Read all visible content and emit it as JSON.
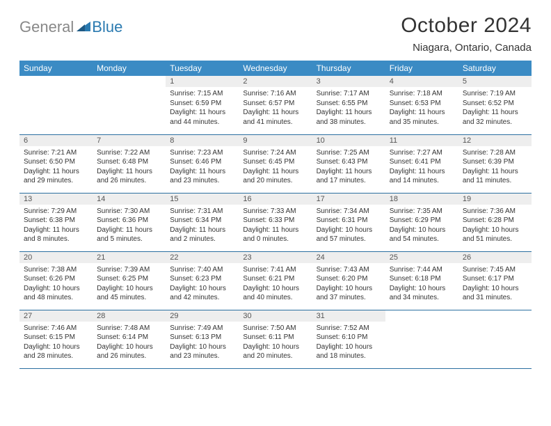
{
  "logo": {
    "text_gray": "General",
    "text_blue": "Blue"
  },
  "title": "October 2024",
  "location": "Niagara, Ontario, Canada",
  "colors": {
    "header_bg": "#3b8bc4",
    "header_text": "#ffffff",
    "daynum_bg": "#eeeeee",
    "row_border": "#2a6fa0",
    "body_text": "#333333",
    "logo_gray": "#888888",
    "logo_blue": "#2a7ab0",
    "page_bg": "#ffffff"
  },
  "fonts": {
    "title_size_pt": 30,
    "location_size_pt": 15,
    "dow_size_pt": 12,
    "daynum_size_pt": 11,
    "cell_size_pt": 10
  },
  "weekdays": [
    "Sunday",
    "Monday",
    "Tuesday",
    "Wednesday",
    "Thursday",
    "Friday",
    "Saturday"
  ],
  "weeks": [
    [
      {
        "day": "",
        "sunrise": "",
        "sunset": "",
        "daylight": ""
      },
      {
        "day": "",
        "sunrise": "",
        "sunset": "",
        "daylight": ""
      },
      {
        "day": "1",
        "sunrise": "Sunrise: 7:15 AM",
        "sunset": "Sunset: 6:59 PM",
        "daylight": "Daylight: 11 hours and 44 minutes."
      },
      {
        "day": "2",
        "sunrise": "Sunrise: 7:16 AM",
        "sunset": "Sunset: 6:57 PM",
        "daylight": "Daylight: 11 hours and 41 minutes."
      },
      {
        "day": "3",
        "sunrise": "Sunrise: 7:17 AM",
        "sunset": "Sunset: 6:55 PM",
        "daylight": "Daylight: 11 hours and 38 minutes."
      },
      {
        "day": "4",
        "sunrise": "Sunrise: 7:18 AM",
        "sunset": "Sunset: 6:53 PM",
        "daylight": "Daylight: 11 hours and 35 minutes."
      },
      {
        "day": "5",
        "sunrise": "Sunrise: 7:19 AM",
        "sunset": "Sunset: 6:52 PM",
        "daylight": "Daylight: 11 hours and 32 minutes."
      }
    ],
    [
      {
        "day": "6",
        "sunrise": "Sunrise: 7:21 AM",
        "sunset": "Sunset: 6:50 PM",
        "daylight": "Daylight: 11 hours and 29 minutes."
      },
      {
        "day": "7",
        "sunrise": "Sunrise: 7:22 AM",
        "sunset": "Sunset: 6:48 PM",
        "daylight": "Daylight: 11 hours and 26 minutes."
      },
      {
        "day": "8",
        "sunrise": "Sunrise: 7:23 AM",
        "sunset": "Sunset: 6:46 PM",
        "daylight": "Daylight: 11 hours and 23 minutes."
      },
      {
        "day": "9",
        "sunrise": "Sunrise: 7:24 AM",
        "sunset": "Sunset: 6:45 PM",
        "daylight": "Daylight: 11 hours and 20 minutes."
      },
      {
        "day": "10",
        "sunrise": "Sunrise: 7:25 AM",
        "sunset": "Sunset: 6:43 PM",
        "daylight": "Daylight: 11 hours and 17 minutes."
      },
      {
        "day": "11",
        "sunrise": "Sunrise: 7:27 AM",
        "sunset": "Sunset: 6:41 PM",
        "daylight": "Daylight: 11 hours and 14 minutes."
      },
      {
        "day": "12",
        "sunrise": "Sunrise: 7:28 AM",
        "sunset": "Sunset: 6:39 PM",
        "daylight": "Daylight: 11 hours and 11 minutes."
      }
    ],
    [
      {
        "day": "13",
        "sunrise": "Sunrise: 7:29 AM",
        "sunset": "Sunset: 6:38 PM",
        "daylight": "Daylight: 11 hours and 8 minutes."
      },
      {
        "day": "14",
        "sunrise": "Sunrise: 7:30 AM",
        "sunset": "Sunset: 6:36 PM",
        "daylight": "Daylight: 11 hours and 5 minutes."
      },
      {
        "day": "15",
        "sunrise": "Sunrise: 7:31 AM",
        "sunset": "Sunset: 6:34 PM",
        "daylight": "Daylight: 11 hours and 2 minutes."
      },
      {
        "day": "16",
        "sunrise": "Sunrise: 7:33 AM",
        "sunset": "Sunset: 6:33 PM",
        "daylight": "Daylight: 11 hours and 0 minutes."
      },
      {
        "day": "17",
        "sunrise": "Sunrise: 7:34 AM",
        "sunset": "Sunset: 6:31 PM",
        "daylight": "Daylight: 10 hours and 57 minutes."
      },
      {
        "day": "18",
        "sunrise": "Sunrise: 7:35 AM",
        "sunset": "Sunset: 6:29 PM",
        "daylight": "Daylight: 10 hours and 54 minutes."
      },
      {
        "day": "19",
        "sunrise": "Sunrise: 7:36 AM",
        "sunset": "Sunset: 6:28 PM",
        "daylight": "Daylight: 10 hours and 51 minutes."
      }
    ],
    [
      {
        "day": "20",
        "sunrise": "Sunrise: 7:38 AM",
        "sunset": "Sunset: 6:26 PM",
        "daylight": "Daylight: 10 hours and 48 minutes."
      },
      {
        "day": "21",
        "sunrise": "Sunrise: 7:39 AM",
        "sunset": "Sunset: 6:25 PM",
        "daylight": "Daylight: 10 hours and 45 minutes."
      },
      {
        "day": "22",
        "sunrise": "Sunrise: 7:40 AM",
        "sunset": "Sunset: 6:23 PM",
        "daylight": "Daylight: 10 hours and 42 minutes."
      },
      {
        "day": "23",
        "sunrise": "Sunrise: 7:41 AM",
        "sunset": "Sunset: 6:21 PM",
        "daylight": "Daylight: 10 hours and 40 minutes."
      },
      {
        "day": "24",
        "sunrise": "Sunrise: 7:43 AM",
        "sunset": "Sunset: 6:20 PM",
        "daylight": "Daylight: 10 hours and 37 minutes."
      },
      {
        "day": "25",
        "sunrise": "Sunrise: 7:44 AM",
        "sunset": "Sunset: 6:18 PM",
        "daylight": "Daylight: 10 hours and 34 minutes."
      },
      {
        "day": "26",
        "sunrise": "Sunrise: 7:45 AM",
        "sunset": "Sunset: 6:17 PM",
        "daylight": "Daylight: 10 hours and 31 minutes."
      }
    ],
    [
      {
        "day": "27",
        "sunrise": "Sunrise: 7:46 AM",
        "sunset": "Sunset: 6:15 PM",
        "daylight": "Daylight: 10 hours and 28 minutes."
      },
      {
        "day": "28",
        "sunrise": "Sunrise: 7:48 AM",
        "sunset": "Sunset: 6:14 PM",
        "daylight": "Daylight: 10 hours and 26 minutes."
      },
      {
        "day": "29",
        "sunrise": "Sunrise: 7:49 AM",
        "sunset": "Sunset: 6:13 PM",
        "daylight": "Daylight: 10 hours and 23 minutes."
      },
      {
        "day": "30",
        "sunrise": "Sunrise: 7:50 AM",
        "sunset": "Sunset: 6:11 PM",
        "daylight": "Daylight: 10 hours and 20 minutes."
      },
      {
        "day": "31",
        "sunrise": "Sunrise: 7:52 AM",
        "sunset": "Sunset: 6:10 PM",
        "daylight": "Daylight: 10 hours and 18 minutes."
      },
      {
        "day": "",
        "sunrise": "",
        "sunset": "",
        "daylight": ""
      },
      {
        "day": "",
        "sunrise": "",
        "sunset": "",
        "daylight": ""
      }
    ]
  ]
}
